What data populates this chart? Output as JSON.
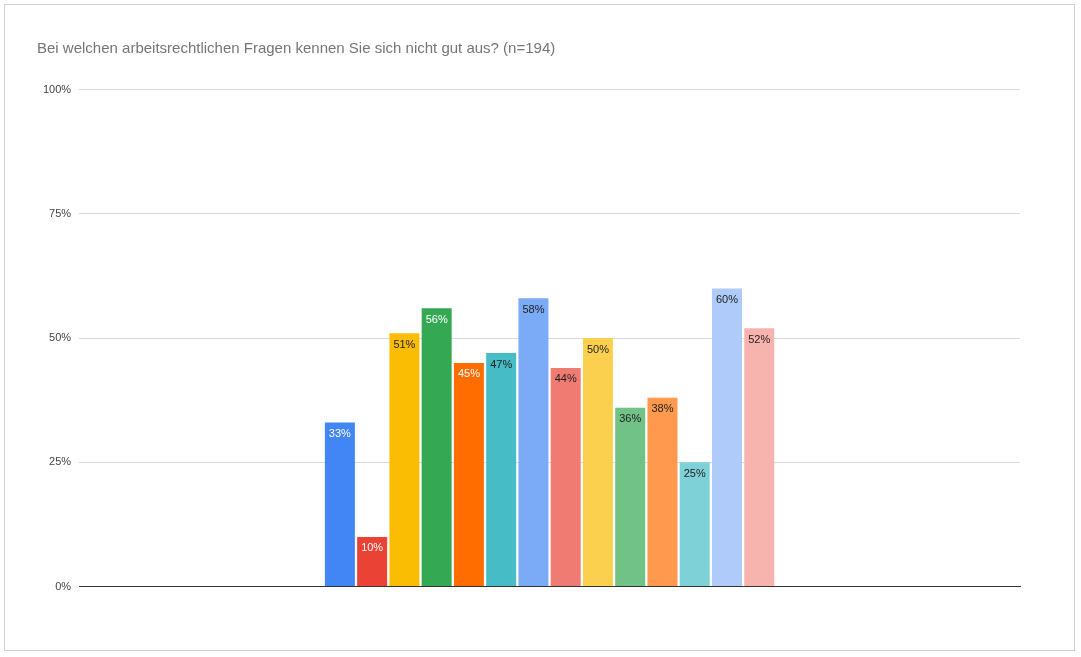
{
  "chart_data": {
    "type": "bar",
    "title": "Bei welchen arbeitsrechtlichen Fragen kennen Sie sich nicht gut aus? (n=194)",
    "categories": [
      null
    ],
    "series": [
      {
        "color": "#4285f4",
        "values": [
          33
        ],
        "value_labels": [
          "33%"
        ]
      },
      {
        "color": "#ea4335",
        "values": [
          10
        ],
        "value_labels": [
          "10%"
        ]
      },
      {
        "color": "#fbbc04",
        "values": [
          51
        ],
        "value_labels": [
          "51%"
        ]
      },
      {
        "color": "#34a853",
        "values": [
          56
        ],
        "value_labels": [
          "56%"
        ]
      },
      {
        "color": "#ff6d01",
        "values": [
          45
        ],
        "value_labels": [
          "45%"
        ]
      },
      {
        "color": "#46bdc6",
        "values": [
          47
        ],
        "value_labels": [
          "47%"
        ]
      },
      {
        "color": "#7baaf7",
        "values": [
          58
        ],
        "value_labels": [
          "58%"
        ]
      },
      {
        "color": "#f07b72",
        "values": [
          44
        ],
        "value_labels": [
          "44%"
        ]
      },
      {
        "color": "#fcd04f",
        "values": [
          50
        ],
        "value_labels": [
          "50%"
        ]
      },
      {
        "color": "#71c287",
        "values": [
          36
        ],
        "value_labels": [
          "36%"
        ]
      },
      {
        "color": "#ff994d",
        "values": [
          38
        ],
        "value_labels": [
          "38%"
        ]
      },
      {
        "color": "#7ed1d7",
        "values": [
          25
        ],
        "value_labels": [
          "25%"
        ]
      },
      {
        "color": "#aecbfa",
        "values": [
          60
        ],
        "value_labels": [
          "60%"
        ]
      },
      {
        "color": "#f7b4ae",
        "values": [
          52
        ],
        "value_labels": [
          "52%"
        ]
      }
    ],
    "ylim": [
      0,
      100
    ],
    "yticks": [
      {
        "value": 0,
        "label": "0%"
      },
      {
        "value": 25,
        "label": "25%"
      },
      {
        "value": 50,
        "label": "50%"
      },
      {
        "value": 75,
        "label": "75%"
      },
      {
        "value": 100,
        "label": "100%"
      }
    ],
    "grid": "y",
    "legend": false
  }
}
